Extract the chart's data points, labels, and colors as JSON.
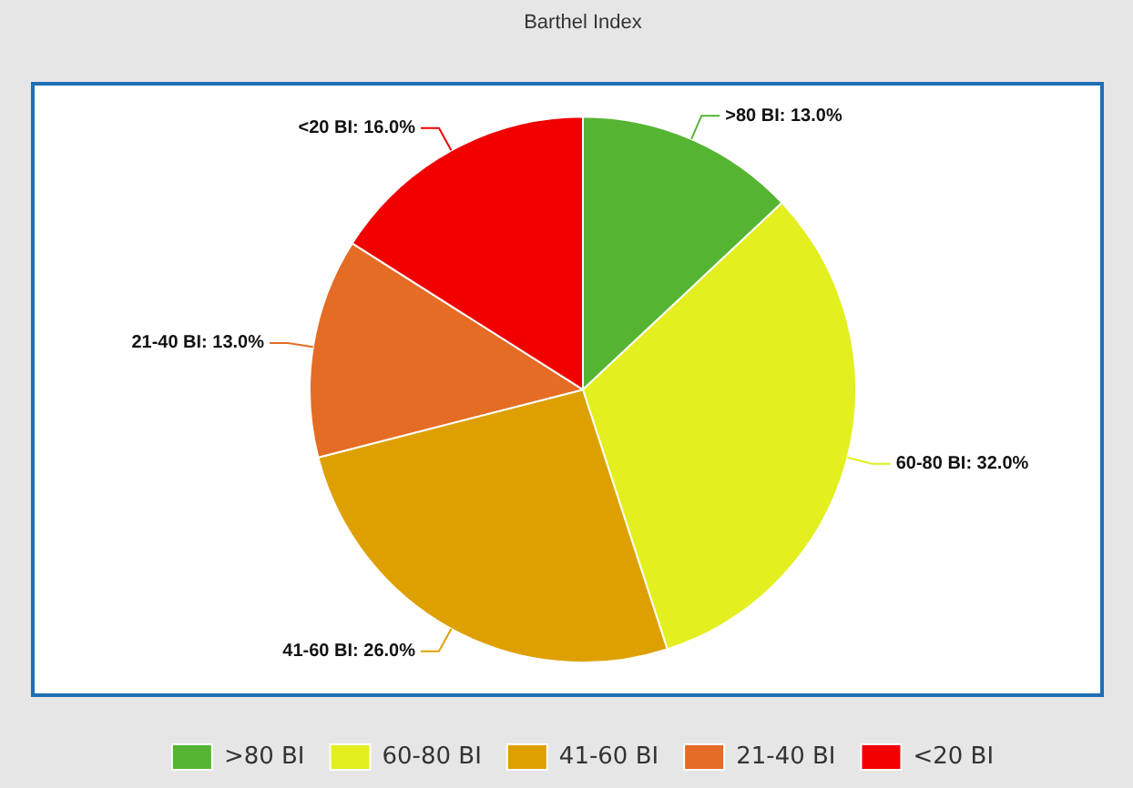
{
  "chart_data": {
    "type": "pie",
    "title": "Barthel Index",
    "categories": [
      ">80 BI",
      "60-80 BI",
      "41-60 BI",
      "21-40 BI",
      "<20 BI"
    ],
    "values": [
      13,
      32,
      26,
      13,
      16
    ],
    "colors": [
      "#55b533",
      "#e3ef1f",
      "#dea000",
      "#e56c24",
      "#f20000"
    ],
    "value_labels": [
      ">80 BI: 13.0%",
      "60-80 BI: 32.0%",
      "41-60 BI: 26.0%",
      "21-40 BI: 13.0%",
      "<20 BI: 16.0%"
    ],
    "legend": "bottom"
  }
}
